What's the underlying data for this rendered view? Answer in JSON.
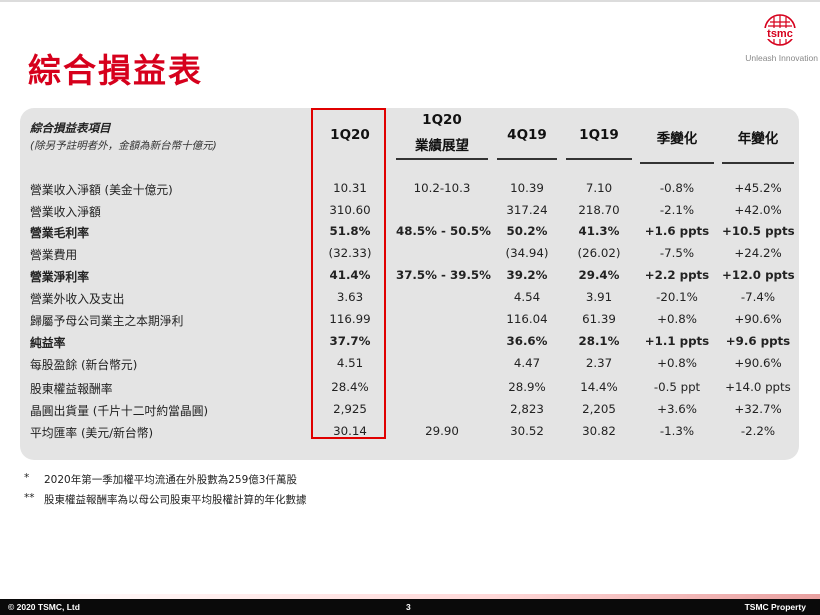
{
  "title": "綜合損益表",
  "logo": {
    "brand": "tsmc",
    "tagline": "Unleash Innovation"
  },
  "table": {
    "header_label": "綜合損益表項目",
    "header_sub": "(除另予註明者外，金額為新台幣十億元)",
    "columns": [
      "1Q20",
      "1Q20\n業績展望",
      "4Q19",
      "1Q19",
      "季變化",
      "年變化"
    ],
    "col_1q20": "1Q20",
    "col_guid_top": "1Q20",
    "col_guid_bottom": "業績展望",
    "col_4q19": "4Q19",
    "col_1q19": "1Q19",
    "col_qoq": "季變化",
    "col_yoy": "年變化",
    "rows": [
      {
        "label": "營業收入淨額 (美金十億元)",
        "q120": "10.31",
        "guid": "10.2-10.3",
        "q419": "10.39",
        "q119": "7.10",
        "qoq": "-0.8%",
        "yoy": "+45.2%",
        "bold": false
      },
      {
        "label": "營業收入淨額",
        "q120": "310.60",
        "guid": "",
        "q419": "317.24",
        "q119": "218.70",
        "qoq": "-2.1%",
        "yoy": "+42.0%",
        "bold": false
      },
      {
        "label": "營業毛利率",
        "q120": "51.8%",
        "guid": "48.5% - 50.5%",
        "q419": "50.2%",
        "q119": "41.3%",
        "qoq": "+1.6 ppts",
        "yoy": "+10.5 ppts",
        "bold": true
      },
      {
        "label": "營業費用",
        "q120": "(32.33)",
        "guid": "",
        "q419": "(34.94)",
        "q119": "(26.02)",
        "qoq": "-7.5%",
        "yoy": "+24.2%",
        "bold": false
      },
      {
        "label": "營業淨利率",
        "q120": "41.4%",
        "guid": "37.5% - 39.5%",
        "q419": "39.2%",
        "q119": "29.4%",
        "qoq": "+2.2 ppts",
        "yoy": "+12.0 ppts",
        "bold": true
      },
      {
        "label": "營業外收入及支出",
        "q120": "3.63",
        "guid": "",
        "q419": "4.54",
        "q119": "3.91",
        "qoq": "-20.1%",
        "yoy": "-7.4%",
        "bold": false
      },
      {
        "label": "歸屬予母公司業主之本期淨利",
        "q120": "116.99",
        "guid": "",
        "q419": "116.04",
        "q119": "61.39",
        "qoq": "+0.8%",
        "yoy": "+90.6%",
        "bold": false
      },
      {
        "label": "純益率",
        "q120": "37.7%",
        "guid": "",
        "q419": "36.6%",
        "q119": "28.1%",
        "qoq": "+1.1 ppts",
        "yoy": "+9.6 ppts",
        "bold": true
      },
      {
        "label": "每股盈餘 (新台幣元)",
        "q120": "4.51",
        "guid": "",
        "q419": "4.47",
        "q119": "2.37",
        "qoq": "+0.8%",
        "yoy": "+90.6%",
        "bold": false
      },
      {
        "label": "股東權益報酬率",
        "q120": "28.4%",
        "guid": "",
        "q419": "28.9%",
        "q119": "14.4%",
        "qoq": "-0.5 ppt",
        "yoy": "+14.0 ppts",
        "bold": false
      },
      {
        "label": "晶圓出貨量 (千片十二吋約當晶圓)",
        "q120": "2,925",
        "guid": "",
        "q419": "2,823",
        "q119": "2,205",
        "qoq": "+3.6%",
        "yoy": "+32.7%",
        "bold": false
      },
      {
        "label": "平均匯率 (美元/新台幣)",
        "q120": "30.14",
        "guid": "29.90",
        "q419": "30.52",
        "q119": "30.82",
        "qoq": "-1.3%",
        "yoy": "-2.2%",
        "bold": false
      }
    ]
  },
  "notes": [
    {
      "mark": "*",
      "text": "2020年第一季加權平均流通在外股數為259億3仟萬股"
    },
    {
      "mark": "**",
      "text": "股東權益報酬率為以母公司股東平均股權計算的年化數據"
    }
  ],
  "footer": {
    "left": "© 2020 TSMC, Ltd",
    "page": "3",
    "right": "TSMC Property"
  },
  "colors": {
    "title": "#d6001c",
    "highlight": "#e00000",
    "panel": "#e4e4e4"
  }
}
